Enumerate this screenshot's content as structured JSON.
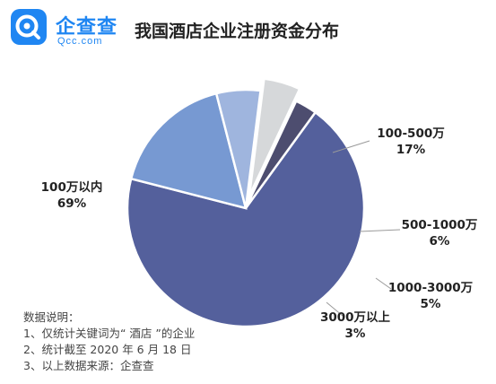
{
  "brand": {
    "name": "企查查",
    "domain": "Qcc.com",
    "color": "#1f86f2"
  },
  "title": "我国酒店企业注册资金分布",
  "chart_data": {
    "type": "pie",
    "title": "我国酒店企业注册资金分布",
    "slices": [
      {
        "label": "100万以内",
        "value": 69,
        "value_label": "69%",
        "color": "#54609c",
        "exploded": false
      },
      {
        "label": "100-500万",
        "value": 17,
        "value_label": "17%",
        "color": "#7799d2",
        "exploded": false
      },
      {
        "label": "500-1000万",
        "value": 6,
        "value_label": "6%",
        "color": "#9fb5de",
        "exploded": false
      },
      {
        "label": "1000-3000万",
        "value": 5,
        "value_label": "5%",
        "color": "#d6d8da",
        "exploded": true
      },
      {
        "label": "3000万以上",
        "value": 3,
        "value_label": "3%",
        "color": "#4d4d6f",
        "exploded": false
      }
    ]
  },
  "notes": {
    "heading": "数据说明：",
    "lines": [
      "1、仅统计关键词为“ 酒店 ”的企业",
      "2、统计截至 2020 年 6 月 18 日",
      "3、以上数据来源：企查查"
    ]
  }
}
